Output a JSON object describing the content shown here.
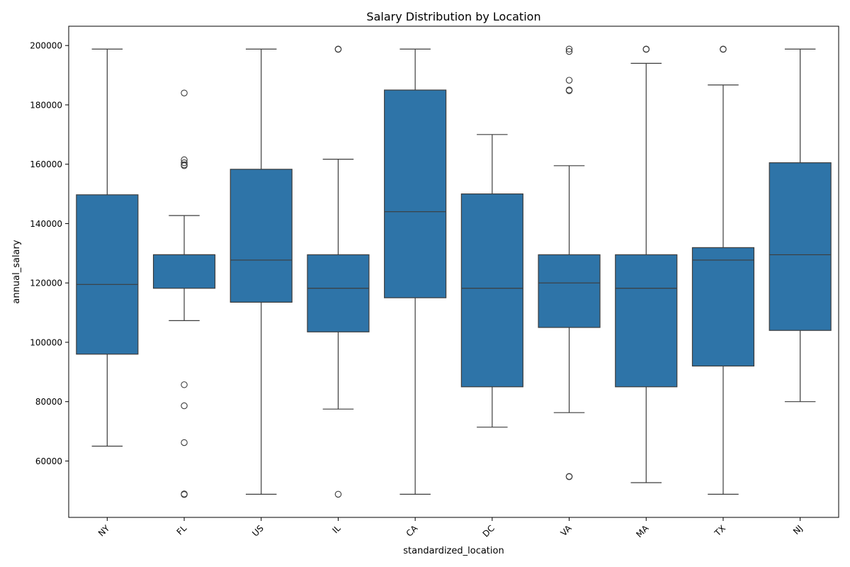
{
  "chart_data": {
    "type": "box",
    "title": "Salary Distribution by Location",
    "xlabel": "standardized_location",
    "ylabel": "annual_salary",
    "ylim": [
      41000,
      206500
    ],
    "yticks": [
      60000,
      80000,
      100000,
      120000,
      140000,
      160000,
      180000,
      200000
    ],
    "grid": false,
    "box_color": "#2e74a8",
    "line_color": "#3d3d3d",
    "categories": [
      "NY",
      "FL",
      "US",
      "IL",
      "CA",
      "DC",
      "VA",
      "MA",
      "TX",
      "NJ"
    ],
    "boxes": [
      {
        "label": "NY",
        "whislo": 65000,
        "q1": 96000,
        "med": 119500,
        "q3": 149700,
        "whishi": 198800,
        "fliers": []
      },
      {
        "label": "FL",
        "whislo": 107300,
        "q1": 118200,
        "med": 129500,
        "q3": 129500,
        "whishi": 142700,
        "fliers": [
          184000,
          161500,
          160500,
          159800,
          159500,
          85700,
          78600,
          66200,
          48900,
          48700
        ]
      },
      {
        "label": "US",
        "whislo": 48800,
        "q1": 113500,
        "med": 127700,
        "q3": 158300,
        "whishi": 198800,
        "fliers": []
      },
      {
        "label": "IL",
        "whislo": 77500,
        "q1": 103500,
        "med": 118200,
        "q3": 129500,
        "whishi": 161700,
        "fliers": [
          198800,
          198700,
          48800
        ]
      },
      {
        "label": "CA",
        "whislo": 48800,
        "q1": 115000,
        "med": 144000,
        "q3": 185000,
        "whishi": 198800,
        "fliers": []
      },
      {
        "label": "DC",
        "whislo": 71400,
        "q1": 85000,
        "med": 118200,
        "q3": 150000,
        "whishi": 170000,
        "fliers": []
      },
      {
        "label": "VA",
        "whislo": 76300,
        "q1": 105000,
        "med": 120000,
        "q3": 129500,
        "whishi": 159500,
        "fliers": [
          198800,
          198000,
          188300,
          185000,
          184800,
          54800,
          54700
        ]
      },
      {
        "label": "MA",
        "whislo": 52700,
        "q1": 85000,
        "med": 118200,
        "q3": 129500,
        "whishi": 194000,
        "fliers": [
          198800,
          198700
        ]
      },
      {
        "label": "TX",
        "whislo": 48800,
        "q1": 92000,
        "med": 127700,
        "q3": 131900,
        "whishi": 186700,
        "fliers": [
          198800,
          198700
        ]
      },
      {
        "label": "NJ",
        "whislo": 80000,
        "q1": 104000,
        "med": 129500,
        "q3": 160500,
        "whishi": 198800,
        "fliers": []
      }
    ]
  }
}
